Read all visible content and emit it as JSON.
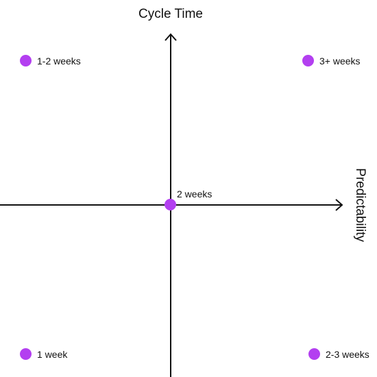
{
  "axes": {
    "y_title": "Cycle Time",
    "x_title": "Predictability"
  },
  "colors": {
    "dot": "#b33ff0",
    "axis": "#111111"
  },
  "points": [
    {
      "label": "1-2 weeks"
    },
    {
      "label": "3+ weeks"
    },
    {
      "label": "2 weeks"
    },
    {
      "label": "1 week"
    },
    {
      "label": "2-3 weeks"
    }
  ]
}
